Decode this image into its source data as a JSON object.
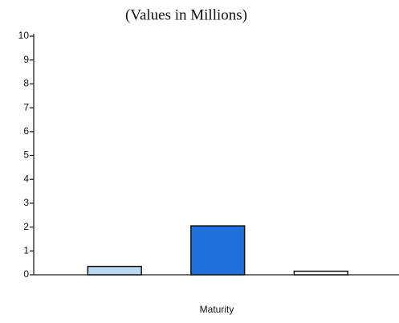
{
  "chart_data": {
    "type": "bar",
    "title": "(Values in Millions)",
    "x_label": "Maturity",
    "categories": [
      null,
      null,
      null
    ],
    "values": [
      0.35,
      2.05,
      0.15
    ],
    "colors": [
      "#bcd9f2",
      "#1f6fdc",
      "#ffffff"
    ],
    "ylim": [
      0,
      10
    ],
    "yticks": [
      0,
      1,
      2,
      3,
      4,
      5,
      6,
      7,
      8,
      9,
      10
    ],
    "grid": false
  }
}
